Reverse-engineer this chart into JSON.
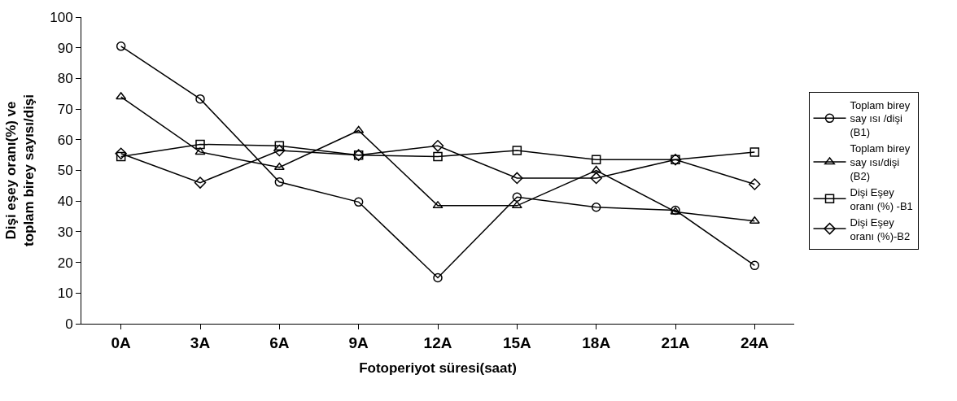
{
  "chart_data": {
    "type": "line",
    "xlabel": "Fotoperiyot süresi(saat)",
    "ylabel": "Dişi eşey oranı(%) ve toplam birey sayısı/dişi",
    "categories": [
      "0A",
      "3A",
      "6A",
      "9A",
      "12A",
      "15A",
      "18A",
      "21A",
      "24A"
    ],
    "ylim": [
      0,
      100
    ],
    "yticks": [
      0,
      10,
      20,
      30,
      40,
      50,
      60,
      70,
      80,
      90,
      100
    ],
    "legend": "right",
    "line_style": "solid",
    "series": [
      {
        "name": "Toplam birey say ısı /dişi (B1)",
        "color": "#000000",
        "marker": "circle",
        "values": [
          90.5,
          73.3,
          46.2,
          39.7,
          15,
          41.3,
          38,
          37,
          19
        ]
      },
      {
        "name": "Toplam birey say ısı/dişi (B2)",
        "color": "#000000",
        "marker": "triangle",
        "values": [
          74,
          56,
          51,
          63,
          38.5,
          38.5,
          50,
          36.5,
          33.5
        ]
      },
      {
        "name": "Dişi Eşey oranı (%) -B1",
        "color": "#000000",
        "marker": "square",
        "values": [
          54.5,
          58.5,
          58,
          55,
          54.5,
          56.5,
          53.5,
          53.5,
          56
        ]
      },
      {
        "name": "Dişi Eşey oranı (%)-B2",
        "color": "#000000",
        "marker": "diamond",
        "values": [
          55.5,
          46,
          56.5,
          55,
          58,
          47.5,
          47.5,
          53.5,
          45.5
        ]
      }
    ]
  }
}
